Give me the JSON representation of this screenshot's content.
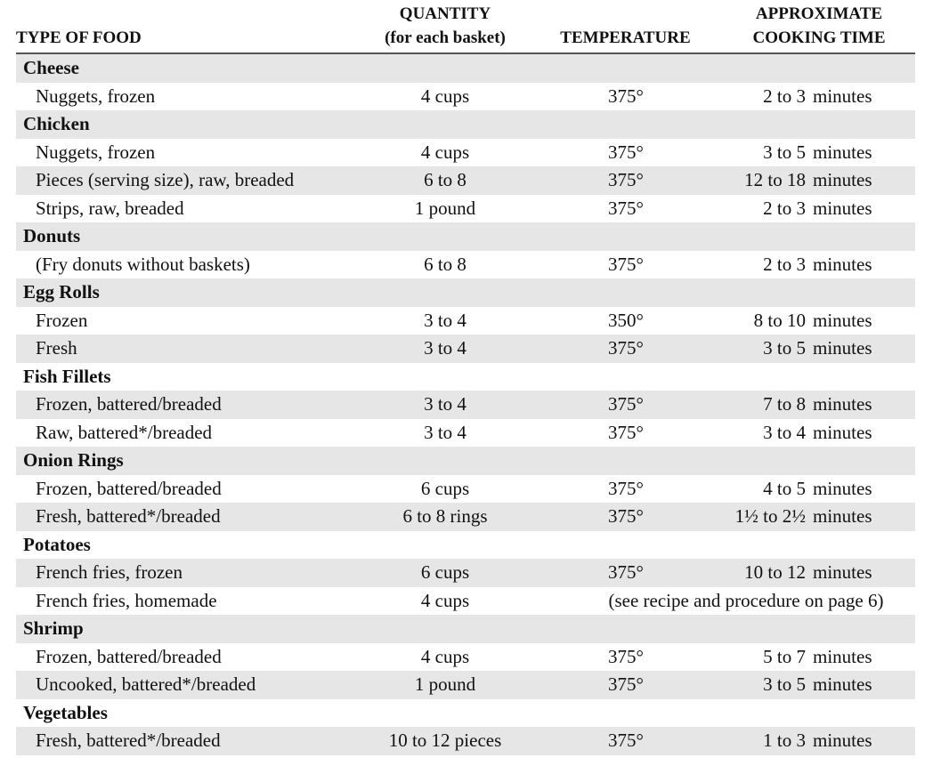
{
  "headers": {
    "type": "TYPE OF FOOD",
    "quantity_1": "QUANTITY",
    "quantity_2": "(for each basket)",
    "temperature": "TEMPERATURE",
    "time_1": "APPROXIMATE",
    "time_2": "COOKING TIME"
  },
  "unit": "minutes",
  "rows": [
    {
      "category": "Cheese"
    },
    {
      "item": "Nuggets, frozen",
      "qty": "4 cups",
      "temp": "375°",
      "time": "2 to 3"
    },
    {
      "category": "Chicken"
    },
    {
      "item": "Nuggets, frozen",
      "qty": "4 cups",
      "temp": "375°",
      "time": "3 to 5"
    },
    {
      "item": "Pieces (serving size), raw, breaded",
      "qty": "6 to 8",
      "temp": "375°",
      "time": "12 to 18"
    },
    {
      "item": "Strips, raw, breaded",
      "qty": "1 pound",
      "temp": "375°",
      "time": "2 to 3"
    },
    {
      "category": "Donuts"
    },
    {
      "item": "(Fry donuts without baskets)",
      "qty": "6 to 8",
      "temp": "375°",
      "time": "2 to 3"
    },
    {
      "category": "Egg Rolls"
    },
    {
      "item": "Frozen",
      "qty": "3 to 4",
      "temp": "350°",
      "time": "8 to 10"
    },
    {
      "item": "Fresh",
      "qty": "3 to 4",
      "temp": "375°",
      "time": "3 to 5"
    },
    {
      "category": "Fish Fillets"
    },
    {
      "item": "Frozen, battered/breaded",
      "qty": "3 to 4",
      "temp": "375°",
      "time": "7 to 8"
    },
    {
      "item": "Raw, battered*/breaded",
      "qty": "3 to 4",
      "temp": "375°",
      "time": "3 to 4"
    },
    {
      "category": "Onion Rings"
    },
    {
      "item": "Frozen, battered/breaded",
      "qty": "6 cups",
      "temp": "375°",
      "time": "4 to 5"
    },
    {
      "item": "Fresh, battered*/breaded",
      "qty": "6 to 8 rings",
      "temp": "375°",
      "time": "1½ to 2½"
    },
    {
      "category": "Potatoes"
    },
    {
      "item": "French fries, frozen",
      "qty": "6 cups",
      "temp": "375°",
      "time": "10 to 12"
    },
    {
      "item": "French fries, homemade",
      "qty": "4 cups",
      "note": "(see recipe and procedure on page 6)"
    },
    {
      "category": "Shrimp"
    },
    {
      "item": "Frozen, battered/breaded",
      "qty": "4 cups",
      "temp": "375°",
      "time": "5 to 7"
    },
    {
      "item": "Uncooked, battered*/breaded",
      "qty": "1 pound",
      "temp": "375°",
      "time": "3 to 5"
    },
    {
      "category": "Vegetables"
    },
    {
      "item": "Fresh, battered*/breaded",
      "qty": "10 to 12 pieces",
      "temp": "375°",
      "time": "1 to 3"
    }
  ]
}
